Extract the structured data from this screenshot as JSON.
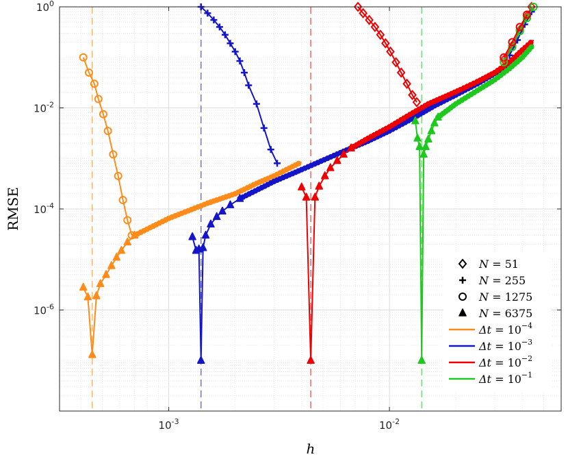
{
  "chart_data": {
    "type": "line",
    "xlabel": "h",
    "ylabel": "RMSE",
    "x_scale": "log",
    "y_scale": "log",
    "xlim": [
      0.00032,
      0.06
    ],
    "ylim": [
      1e-08,
      1
    ],
    "grid": true,
    "minor_grid": true,
    "legend_placement": "bottom-right",
    "x_ticks": [
      {
        "value": 0.001,
        "base": "10",
        "exp": "-3"
      },
      {
        "value": 0.01,
        "base": "10",
        "exp": "-2"
      }
    ],
    "y_ticks": [
      {
        "value": 1,
        "base": "10",
        "exp": "0"
      },
      {
        "value": 0.01,
        "base": "10",
        "exp": "-2"
      },
      {
        "value": 0.0001,
        "base": "10",
        "exp": "-4"
      },
      {
        "value": 1e-06,
        "base": "10",
        "exp": "-6"
      }
    ],
    "legend": [
      {
        "kind": "marker",
        "marker": "diamond",
        "label_var": "N",
        "label_eq": " = 51"
      },
      {
        "kind": "marker",
        "marker": "plus",
        "label_var": "N",
        "label_eq": " = 255"
      },
      {
        "kind": "marker",
        "marker": "circle",
        "label_var": "N",
        "label_eq": " = 1275"
      },
      {
        "kind": "marker",
        "marker": "triangle",
        "label_var": "N",
        "label_eq": " = 6375"
      },
      {
        "kind": "line",
        "color": "#ff8c1a",
        "label_var": "Δt",
        "label_eq": " = 10",
        "label_exp": "−4"
      },
      {
        "kind": "line",
        "color": "#1414c8",
        "label_var": "Δt",
        "label_eq": " = 10",
        "label_exp": "−3"
      },
      {
        "kind": "line",
        "color": "#ee0000",
        "label_var": "Δt",
        "label_eq": " = 10",
        "label_exp": "−2"
      },
      {
        "kind": "line",
        "color": "#1ec81e",
        "label_var": "Δt",
        "label_eq": " = 10",
        "label_exp": "−1"
      }
    ],
    "vlines": [
      {
        "x": 0.00045,
        "color": "#ff8c1a"
      },
      {
        "x": 0.0014,
        "color": "#1414c8"
      },
      {
        "x": 0.0044,
        "color": "#ee0000"
      },
      {
        "x": 0.014,
        "color": "#1ec81e"
      }
    ],
    "series": [
      {
        "color": "#ff8c1a",
        "marker": "circle",
        "x": [
          0.00041,
          0.000435,
          0.00046,
          0.00048,
          0.000505,
          0.00053,
          0.00056,
          0.00059,
          0.00062,
          0.00065,
          0.00068
        ],
        "y": [
          0.1,
          0.05,
          0.03,
          0.015,
          0.0075,
          0.0035,
          0.0012,
          0.00045,
          0.00015,
          6e-05,
          3e-05
        ]
      },
      {
        "color": "#ff8c1a",
        "marker": "triangle",
        "x": [
          0.00041,
          0.00043,
          0.00045,
          0.00047,
          0.00049,
          0.00052,
          0.00055,
          0.00058,
          0.00061,
          0.00065,
          0.0007
        ],
        "y": [
          2.8e-06,
          1.8e-06,
          1.3e-07,
          1.9e-06,
          3.3e-06,
          5e-06,
          7.5e-06,
          1.1e-05,
          1.5e-05,
          2.2e-05,
          3e-05
        ]
      },
      {
        "color": "#ff8c1a",
        "marker": "none",
        "x": [
          0.0007,
          0.001,
          0.0015,
          0.002,
          0.0025,
          0.003,
          0.004
        ],
        "y": [
          3e-05,
          6.5e-05,
          0.00013,
          0.0002,
          0.00032,
          0.00045,
          0.00085
        ]
      },
      {
        "color": "#1414c8",
        "marker": "plus",
        "x": [
          0.0014,
          0.0015,
          0.0016,
          0.0017,
          0.0018,
          0.0019,
          0.002,
          0.0021,
          0.0022,
          0.0023,
          0.0025,
          0.0027,
          0.0029,
          0.0031
        ],
        "y": [
          1,
          0.75,
          0.55,
          0.4,
          0.28,
          0.19,
          0.13,
          0.085,
          0.05,
          0.028,
          0.012,
          0.004,
          0.0015,
          0.0008
        ]
      },
      {
        "color": "#1414c8",
        "marker": "triangle",
        "x": [
          0.00128,
          0.00133,
          0.00137,
          0.0014,
          0.00143,
          0.00147,
          0.00155,
          0.00165,
          0.00175,
          0.0019,
          0.0021
        ],
        "y": [
          2.8e-05,
          1.5e-05,
          1.6e-05,
          1e-07,
          1.7e-05,
          3e-05,
          5e-05,
          7e-05,
          9e-05,
          0.00012,
          0.00016
        ]
      },
      {
        "color": "#1414c8",
        "marker": "none",
        "x": [
          0.0021,
          0.003,
          0.004,
          0.006,
          0.008,
          0.01,
          0.013,
          0.016,
          0.02,
          0.025,
          0.03,
          0.035
        ],
        "y": [
          0.00016,
          0.00035,
          0.0006,
          0.0013,
          0.0022,
          0.0035,
          0.0065,
          0.011,
          0.018,
          0.03,
          0.048,
          0.07
        ]
      },
      {
        "color": "#ee0000",
        "marker": "diamond",
        "x": [
          0.0072,
          0.0076,
          0.0081,
          0.0086,
          0.0091,
          0.0096,
          0.0101,
          0.0107,
          0.0113,
          0.012,
          0.0127,
          0.0133
        ],
        "y": [
          1,
          0.75,
          0.55,
          0.4,
          0.28,
          0.19,
          0.13,
          0.08,
          0.05,
          0.03,
          0.018,
          0.013
        ]
      },
      {
        "color": "#ee0000",
        "marker": "triangle",
        "x": [
          0.004,
          0.0042,
          0.0044,
          0.0046,
          0.0048,
          0.0051,
          0.0054,
          0.0058,
          0.0062,
          0.0067
        ],
        "y": [
          0.00027,
          0.00017,
          1e-07,
          0.00017,
          0.00028,
          0.00045,
          0.00065,
          0.0009,
          0.0012,
          0.0016
        ]
      },
      {
        "color": "#ee0000",
        "marker": "none",
        "x": [
          0.0067,
          0.008,
          0.01,
          0.012,
          0.015,
          0.018,
          0.021,
          0.025,
          0.03,
          0.035,
          0.04,
          0.045
        ],
        "y": [
          0.0016,
          0.0025,
          0.0042,
          0.0068,
          0.012,
          0.017,
          0.023,
          0.033,
          0.05,
          0.08,
          0.14,
          0.22
        ]
      },
      {
        "color": "#1ec81e",
        "marker": "triangle",
        "x": [
          0.0131,
          0.0134,
          0.0137,
          0.014,
          0.0143,
          0.0146,
          0.015,
          0.0155,
          0.016,
          0.0166
        ],
        "y": [
          0.0055,
          0.0025,
          0.0017,
          1e-07,
          0.0012,
          0.0017,
          0.0024,
          0.0035,
          0.005,
          0.0065
        ]
      },
      {
        "color": "#1ec81e",
        "marker": "none",
        "x": [
          0.0166,
          0.02,
          0.025,
          0.03,
          0.035,
          0.04,
          0.045
        ],
        "y": [
          0.0065,
          0.012,
          0.022,
          0.036,
          0.06,
          0.1,
          0.18
        ]
      },
      {
        "color": "#ff1a1a",
        "marker": "diamond",
        "x": [
          0.033,
          0.036,
          0.039,
          0.042,
          0.044
        ],
        "y": [
          0.09,
          0.17,
          0.35,
          0.65,
          1.0
        ]
      },
      {
        "color": "#1414c8",
        "marker": "plus",
        "x": [
          0.035,
          0.038,
          0.041,
          0.044
        ],
        "y": [
          0.11,
          0.22,
          0.45,
          0.8
        ]
      },
      {
        "color": "#1ec81e",
        "marker": "circle",
        "x": [
          0.033,
          0.036,
          0.039,
          0.042,
          0.045
        ],
        "y": [
          0.08,
          0.16,
          0.33,
          0.6,
          1.0
        ]
      },
      {
        "color": "#ee0000",
        "marker": "circle",
        "x": [
          0.033,
          0.036,
          0.039,
          0.042
        ],
        "y": [
          0.1,
          0.2,
          0.4,
          0.7
        ]
      }
    ]
  }
}
